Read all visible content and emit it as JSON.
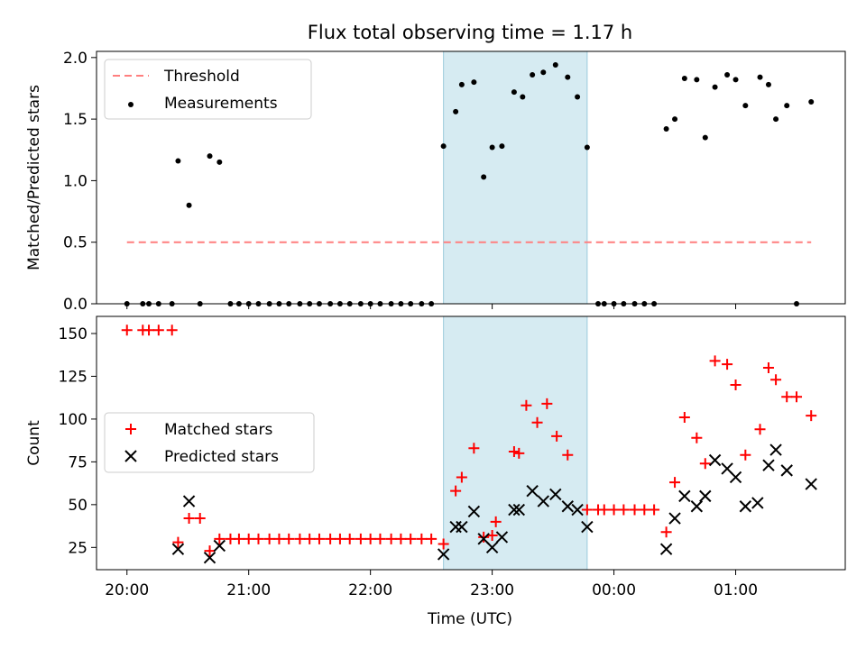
{
  "chart_data": [
    {
      "type": "scatter",
      "panel": "top",
      "title": "Flux total observing time = 1.17 h",
      "xlabel": "",
      "ylabel": "Matched/Predicted stars",
      "xlim": [
        19.75,
        25.9
      ],
      "ylim": [
        0,
        2.05
      ],
      "yticks": [
        0.0,
        0.5,
        1.0,
        1.5,
        2.0
      ],
      "ytick_labels": [
        "0.0",
        "0.5",
        "1.0",
        "1.5",
        "2.0"
      ],
      "shaded_span": [
        22.6,
        23.78
      ],
      "legend": {
        "placement": "top-left",
        "entries": [
          "Threshold",
          "Measurements"
        ]
      },
      "threshold": {
        "name": "Threshold",
        "value": 0.5,
        "x_range": [
          20.0,
          25.62
        ],
        "color": "#ff7f7f",
        "style": "dashed"
      },
      "series": [
        {
          "name": "Measurements",
          "color": "#000000",
          "x": [
            20.0,
            20.13,
            20.18,
            20.26,
            20.37,
            20.42,
            20.51,
            20.6,
            20.68,
            20.76,
            20.85,
            20.92,
            21.0,
            21.08,
            21.17,
            21.25,
            21.33,
            21.42,
            21.5,
            21.58,
            21.67,
            21.75,
            21.83,
            21.92,
            22.0,
            22.08,
            22.17,
            22.25,
            22.33,
            22.42,
            22.5,
            22.6,
            22.7,
            22.75,
            22.85,
            22.93,
            23.0,
            23.08,
            23.18,
            23.25,
            23.33,
            23.42,
            23.52,
            23.62,
            23.7,
            23.78,
            23.87,
            23.92,
            24.0,
            24.08,
            24.17,
            24.25,
            24.33,
            24.43,
            24.5,
            24.58,
            24.68,
            24.75,
            24.83,
            24.93,
            25.0,
            25.08,
            25.2,
            25.27,
            25.33,
            25.42,
            25.5,
            25.62
          ],
          "y": [
            0,
            0,
            0,
            0,
            0,
            1.16,
            0.8,
            0,
            1.2,
            1.15,
            0,
            0,
            0,
            0,
            0,
            0,
            0,
            0,
            0,
            0,
            0,
            0,
            0,
            0,
            0,
            0,
            0,
            0,
            0,
            0,
            0,
            1.28,
            1.56,
            1.78,
            1.8,
            1.03,
            1.27,
            1.28,
            1.72,
            1.68,
            1.86,
            1.88,
            1.94,
            1.84,
            1.68,
            1.27,
            0,
            0,
            0,
            0,
            0,
            0,
            0,
            1.42,
            1.5,
            1.83,
            1.82,
            1.35,
            1.76,
            1.86,
            1.82,
            1.61,
            1.84,
            1.78,
            1.5,
            1.61,
            0,
            1.64
          ]
        }
      ]
    },
    {
      "type": "scatter",
      "panel": "bottom",
      "xlabel": "Time (UTC)",
      "ylabel": "Count",
      "xlim": [
        19.75,
        25.9
      ],
      "ylim": [
        12,
        160
      ],
      "yticks": [
        25,
        50,
        75,
        100,
        125,
        150
      ],
      "ytick_labels": [
        "25",
        "50",
        "75",
        "100",
        "125",
        "150"
      ],
      "xticks": [
        20,
        21,
        22,
        23,
        24,
        25
      ],
      "xtick_labels": [
        "20:00",
        "21:00",
        "22:00",
        "23:00",
        "00:00",
        "01:00"
      ],
      "shaded_span": [
        22.6,
        23.78
      ],
      "legend": {
        "placement": "center-left",
        "entries": [
          "Matched stars",
          "Predicted stars"
        ]
      },
      "series": [
        {
          "name": "Matched stars",
          "marker": "plus",
          "color": "#ff0000",
          "x": [
            20.0,
            20.13,
            20.18,
            20.26,
            20.37,
            20.42,
            20.51,
            20.6,
            20.68,
            20.76,
            20.85,
            20.92,
            21.0,
            21.08,
            21.17,
            21.25,
            21.33,
            21.42,
            21.5,
            21.58,
            21.67,
            21.75,
            21.83,
            21.92,
            22.0,
            22.08,
            22.17,
            22.25,
            22.33,
            22.42,
            22.5,
            22.6,
            22.7,
            22.75,
            22.85,
            22.93,
            23.0,
            23.03,
            23.18,
            23.22,
            23.28,
            23.37,
            23.45,
            23.53,
            23.62,
            23.78,
            23.87,
            23.92,
            24.0,
            24.08,
            24.17,
            24.25,
            24.33,
            24.43,
            24.5,
            24.58,
            24.68,
            24.75,
            24.83,
            24.93,
            25.0,
            25.08,
            25.2,
            25.27,
            25.33,
            25.42,
            25.5,
            25.62
          ],
          "y": [
            152,
            152,
            152,
            152,
            152,
            28,
            42,
            42,
            23,
            30,
            30,
            30,
            30,
            30,
            30,
            30,
            30,
            30,
            30,
            30,
            30,
            30,
            30,
            30,
            30,
            30,
            30,
            30,
            30,
            30,
            30,
            27,
            58,
            66,
            83,
            31,
            32,
            40,
            81,
            80,
            108,
            98,
            109,
            90,
            79,
            47,
            47,
            47,
            47,
            47,
            47,
            47,
            47,
            34,
            63,
            101,
            89,
            74,
            134,
            132,
            120,
            79,
            94,
            130,
            123,
            113,
            113,
            102
          ]
        },
        {
          "name": "Predicted stars",
          "marker": "x",
          "color": "#000000",
          "x": [
            20.42,
            20.51,
            20.68,
            20.76,
            22.6,
            22.7,
            22.75,
            22.85,
            22.93,
            23.0,
            23.08,
            23.18,
            23.22,
            23.33,
            23.42,
            23.52,
            23.62,
            23.7,
            23.78,
            24.43,
            24.5,
            24.58,
            24.68,
            24.75,
            24.83,
            24.93,
            25.0,
            25.08,
            25.18,
            25.27,
            25.33,
            25.42,
            25.62
          ],
          "y": [
            24,
            52,
            19,
            26,
            21,
            37,
            37,
            46,
            30,
            25,
            31,
            47,
            47,
            58,
            52,
            56,
            49,
            47,
            37,
            24,
            42,
            55,
            49,
            55,
            76,
            71,
            66,
            49,
            51,
            73,
            82,
            70,
            62
          ]
        }
      ]
    }
  ]
}
